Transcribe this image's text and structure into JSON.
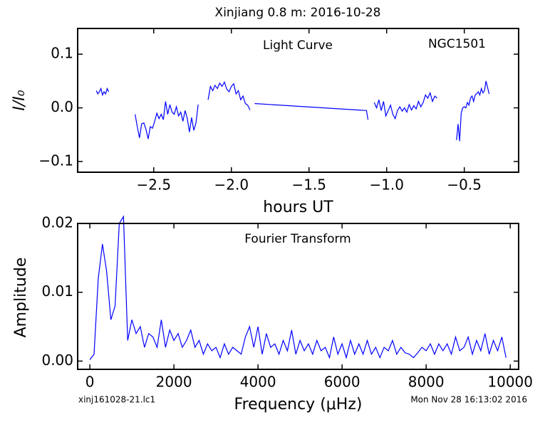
{
  "title": "Xinjiang 0.8 m:  2016-10-28",
  "file_label": "xinj161028-21.lc1",
  "timestamp": "Mon Nov 28 16:13:02 2016",
  "chart_data": [
    {
      "type": "line",
      "ylabel": "I/I₀",
      "xlabel": "hours UT",
      "annotations": [
        "Light Curve",
        "NGC1501"
      ],
      "xlim": [
        -2.99,
        -0.15
      ],
      "ylim": [
        -0.12,
        0.148
      ],
      "xticks": [
        {
          "value": -2.5,
          "label": "−2.5"
        },
        {
          "value": -2.0,
          "label": "−2.0"
        },
        {
          "value": -1.5,
          "label": "−1.5"
        },
        {
          "value": -1.0,
          "label": "−1.0"
        },
        {
          "value": -0.5,
          "label": "−0.5"
        }
      ],
      "yticks": [
        {
          "value": 0.1,
          "label": "0.1"
        },
        {
          "value": 0,
          "label": "0.0"
        },
        {
          "value": -0.1,
          "label": "−0.1"
        }
      ],
      "series": [
        {
          "color": "#0000ff",
          "x": [
            -2.87,
            -2.86,
            -2.85,
            -2.84,
            -2.83,
            -2.82,
            -2.81,
            -2.8,
            -2.79,
            -2.7,
            -2.62,
            -2.606,
            -2.592,
            -2.578,
            -2.564,
            -2.55,
            -2.536,
            -2.522,
            -2.508,
            -2.494,
            -2.48,
            -2.466,
            -2.452,
            -2.438,
            -2.424,
            -2.41,
            -2.396,
            -2.382,
            -2.368,
            -2.354,
            -2.34,
            -2.326,
            -2.312,
            -2.298,
            -2.284,
            -2.27,
            -2.256,
            -2.242,
            -2.228,
            -2.214,
            -2.18,
            -2.15,
            -2.135,
            -2.12,
            -2.105,
            -2.09,
            -2.075,
            -2.06,
            -2.045,
            -2.03,
            -2.015,
            -2.0,
            -1.985,
            -1.97,
            -1.955,
            -1.94,
            -1.925,
            -1.91,
            -1.895,
            -1.88,
            -1.86,
            -1.85,
            -1.13,
            -1.12,
            -1.1,
            -1.08,
            -1.065,
            -1.05,
            -1.035,
            -1.02,
            -1.005,
            -0.99,
            -0.975,
            -0.96,
            -0.945,
            -0.93,
            -0.915,
            -0.9,
            -0.885,
            -0.87,
            -0.855,
            -0.84,
            -0.825,
            -0.81,
            -0.795,
            -0.78,
            -0.765,
            -0.75,
            -0.735,
            -0.72,
            -0.705,
            -0.69,
            -0.675,
            -0.6,
            -0.55,
            -0.54,
            -0.53,
            -0.52,
            -0.51,
            -0.5,
            -0.49,
            -0.48,
            -0.47,
            -0.46,
            -0.45,
            -0.44,
            -0.43,
            -0.42,
            -0.41,
            -0.4,
            -0.39,
            -0.38,
            -0.37,
            -0.36,
            -0.35,
            -0.34
          ],
          "values": [
            0.032,
            0.026,
            0.03,
            0.036,
            0.024,
            0.03,
            0.026,
            0.036,
            0.03,
            null,
            -0.012,
            -0.035,
            -0.056,
            -0.03,
            -0.028,
            -0.04,
            -0.058,
            -0.035,
            -0.038,
            -0.025,
            -0.01,
            -0.02,
            -0.012,
            -0.022,
            0.012,
            -0.012,
            0.006,
            -0.008,
            -0.012,
            0.002,
            -0.015,
            -0.008,
            -0.025,
            -0.005,
            -0.02,
            -0.045,
            -0.018,
            -0.042,
            -0.028,
            0.006,
            null,
            0.015,
            0.04,
            0.032,
            0.042,
            0.036,
            0.046,
            0.04,
            0.048,
            0.035,
            0.03,
            0.04,
            0.045,
            0.026,
            0.032,
            0.015,
            0.022,
            0.008,
            0.005,
            -0.004,
            null,
            0.008,
            -0.005,
            -0.022,
            null,
            0.01,
            0.0,
            0.015,
            -0.005,
            0.012,
            -0.015,
            -0.005,
            0.005,
            -0.012,
            -0.02,
            -0.005,
            0.002,
            -0.006,
            0.0,
            -0.008,
            0.006,
            -0.004,
            0.004,
            -0.002,
            0.012,
            0.002,
            0.01,
            0.024,
            0.018,
            0.028,
            0.012,
            0.022,
            0.018,
            null,
            -0.06,
            -0.03,
            -0.062,
            -0.01,
            0.0,
            0.002,
            0.0,
            0.01,
            0.005,
            0.018,
            0.022,
            0.012,
            0.024,
            0.026,
            0.03,
            0.024,
            0.036,
            0.028,
            0.032,
            0.05,
            0.038,
            0.026
          ]
        }
      ]
    },
    {
      "type": "line",
      "ylabel": "Amplitude",
      "xlabel": "Frequency (μHz)",
      "annotations": [
        "Fourier Transform"
      ],
      "xlim": [
        -290,
        10200
      ],
      "ylim": [
        -0.0012,
        0.02
      ],
      "xticks": [
        0,
        2000,
        4000,
        6000,
        8000,
        10000
      ],
      "yticks": [
        {
          "value": 0,
          "label": "0.00"
        },
        0.01,
        0.02
      ],
      "series": [
        {
          "color": "#0000ff",
          "x": [
            0,
            100,
            200,
            300,
            400,
            500,
            600,
            700,
            800,
            900,
            1000,
            1100,
            1200,
            1300,
            1400,
            1500,
            1600,
            1700,
            1800,
            1900,
            2000,
            2100,
            2200,
            2300,
            2400,
            2500,
            2600,
            2700,
            2800,
            2900,
            3000,
            3100,
            3200,
            3300,
            3400,
            3500,
            3600,
            3700,
            3800,
            3900,
            4000,
            4100,
            4200,
            4300,
            4400,
            4500,
            4600,
            4700,
            4800,
            4900,
            5000,
            5100,
            5200,
            5300,
            5400,
            5500,
            5600,
            5700,
            5800,
            5900,
            6000,
            6100,
            6200,
            6300,
            6400,
            6500,
            6600,
            6700,
            6800,
            6900,
            7000,
            7100,
            7200,
            7300,
            7400,
            7500,
            7600,
            7700,
            7800,
            7900,
            8000,
            8100,
            8200,
            8300,
            8400,
            8500,
            8600,
            8700,
            8800,
            8900,
            9000,
            9100,
            9200,
            9300,
            9400,
            9500,
            9600,
            9700,
            9800,
            9900
          ],
          "values": [
            0.0002,
            0.001,
            0.012,
            0.017,
            0.013,
            0.006,
            0.008,
            0.02,
            0.021,
            0.003,
            0.006,
            0.004,
            0.005,
            0.002,
            0.004,
            0.0035,
            0.002,
            0.006,
            0.002,
            0.0045,
            0.003,
            0.004,
            0.002,
            0.003,
            0.0045,
            0.002,
            0.003,
            0.001,
            0.0025,
            0.0015,
            0.002,
            0.0005,
            0.0025,
            0.001,
            0.002,
            0.0015,
            0.001,
            0.0035,
            0.005,
            0.002,
            0.005,
            0.001,
            0.004,
            0.002,
            0.0025,
            0.001,
            0.003,
            0.0015,
            0.0045,
            0.001,
            0.003,
            0.0015,
            0.0025,
            0.001,
            0.003,
            0.0015,
            0.002,
            0.0005,
            0.0035,
            0.001,
            0.0025,
            0.0005,
            0.003,
            0.001,
            0.0025,
            0.001,
            0.003,
            0.001,
            0.002,
            0.0005,
            0.002,
            0.0015,
            0.003,
            0.001,
            0.002,
            0.0012,
            0.001,
            0.0005,
            0.0012,
            0.002,
            0.0015,
            0.0025,
            0.001,
            0.0025,
            0.0015,
            0.0025,
            0.001,
            0.0035,
            0.0015,
            0.002,
            0.0035,
            0.001,
            0.003,
            0.0015,
            0.004,
            0.001,
            0.003,
            0.0015,
            0.0035,
            0.0005
          ]
        }
      ]
    }
  ]
}
